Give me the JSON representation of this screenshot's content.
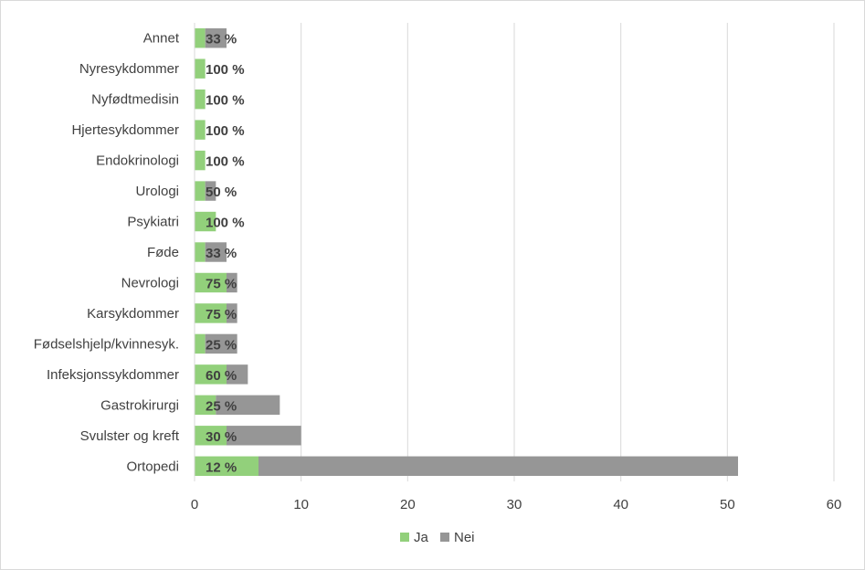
{
  "chart_data": {
    "type": "bar",
    "orientation": "horizontal",
    "stacked": true,
    "categories": [
      "Annet",
      "Nyresykdommer",
      "Nyfødtmedisin",
      "Hjertesykdommer",
      "Endokrinologi",
      "Urologi",
      "Psykiatri",
      "Føde",
      "Nevrologi",
      "Karsykdommer",
      "Fødselshjelp/kvinnesyk.",
      "Infeksjonssykdommer",
      "Gastrokirurgi",
      "Svulster og kreft",
      "Ortopedi"
    ],
    "series": [
      {
        "name": "Ja",
        "color": "#92d07b",
        "values": [
          1,
          1,
          1,
          1,
          1,
          1,
          2,
          1,
          3,
          3,
          1,
          3,
          2,
          3,
          6
        ]
      },
      {
        "name": "Nei",
        "color": "#969696",
        "values": [
          2,
          0,
          0,
          0,
          0,
          1,
          0,
          2,
          1,
          1,
          3,
          2,
          6,
          7,
          45
        ]
      }
    ],
    "data_labels": [
      "33 %",
      "100 %",
      "100 %",
      "100 %",
      "100 %",
      "50 %",
      "100 %",
      "33 %",
      "75 %",
      "75 %",
      "25 %",
      "60 %",
      "25 %",
      "30 %",
      "12 %"
    ],
    "xticks": [
      "0",
      "10",
      "20",
      "30",
      "40",
      "50",
      "60"
    ],
    "xlim": [
      0,
      60
    ],
    "title": "",
    "xlabel": "",
    "ylabel": "",
    "grid": "vertical",
    "legend": "bottom"
  }
}
